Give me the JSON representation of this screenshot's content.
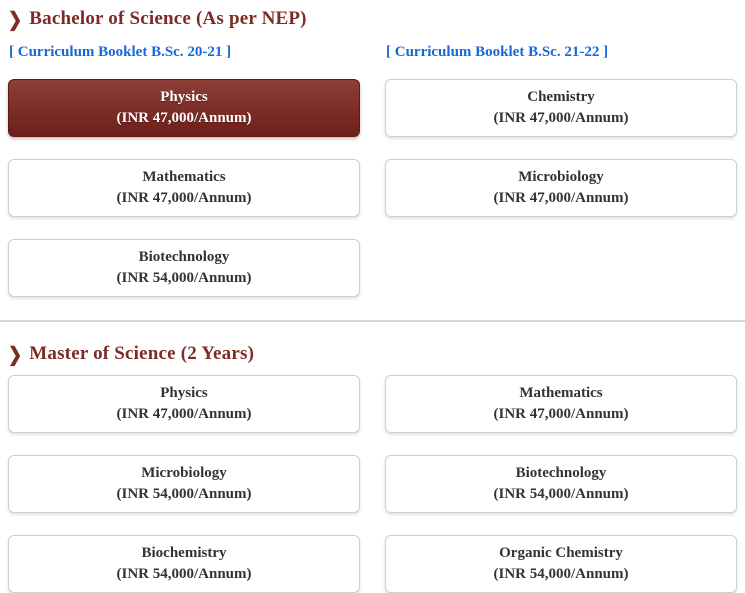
{
  "icons": {
    "chevron": "❯"
  },
  "theme": {
    "accent_maroon": "#7d2b24",
    "active_card_gradient_top": "#8e3e38",
    "active_card_gradient_bottom": "#6d1f1a",
    "link_blue": "#1668dd",
    "card_border": "#cfcfcf",
    "card_text": "#333333",
    "divider_gray": "#d6d6d6"
  },
  "sections": [
    {
      "title": "Bachelor of Science (As per NEP)",
      "links": [
        {
          "label": "[ Curriculum Booklet B.Sc. 20-21 ]"
        },
        {
          "label": "[ Curriculum Booklet B.Sc. 21-22 ]"
        }
      ],
      "courses": [
        {
          "name": "Physics",
          "fee": "(INR 47,000/Annum)",
          "active": true
        },
        {
          "name": "Chemistry",
          "fee": "(INR 47,000/Annum)",
          "active": false
        },
        {
          "name": "Mathematics",
          "fee": "(INR 47,000/Annum)",
          "active": false
        },
        {
          "name": "Microbiology",
          "fee": "(INR 47,000/Annum)",
          "active": false
        },
        {
          "name": "Biotechnology",
          "fee": "(INR 54,000/Annum)",
          "active": false
        }
      ]
    },
    {
      "title": "Master of Science (2 Years)",
      "links": [],
      "courses": [
        {
          "name": "Physics",
          "fee": "(INR 47,000/Annum)",
          "active": false
        },
        {
          "name": "Mathematics",
          "fee": "(INR 47,000/Annum)",
          "active": false
        },
        {
          "name": "Microbiology",
          "fee": "(INR 54,000/Annum)",
          "active": false
        },
        {
          "name": "Biotechnology",
          "fee": "(INR 54,000/Annum)",
          "active": false
        },
        {
          "name": "Biochemistry",
          "fee": "(INR 54,000/Annum)",
          "active": false
        },
        {
          "name": "Organic Chemistry",
          "fee": "(INR 54,000/Annum)",
          "active": false
        }
      ]
    }
  ]
}
